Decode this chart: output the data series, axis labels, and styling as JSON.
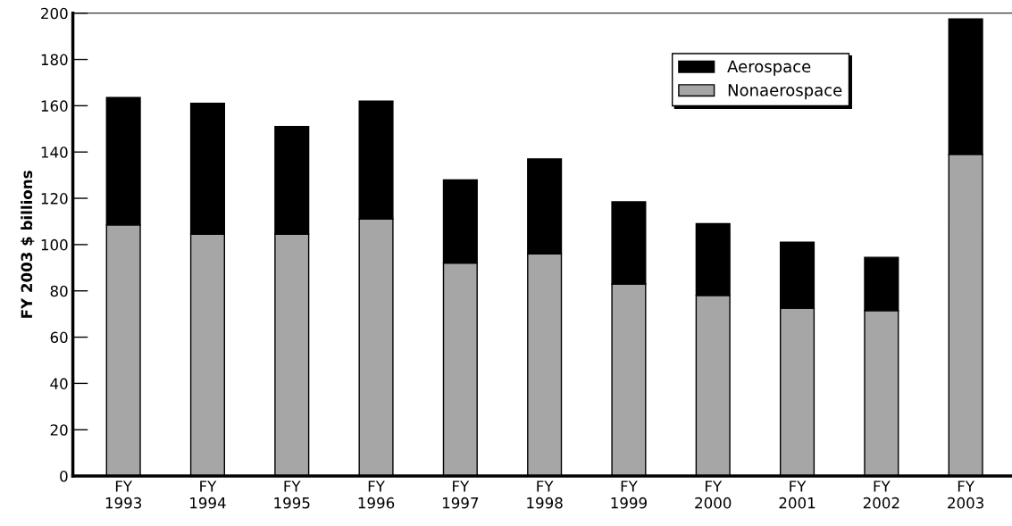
{
  "chart_data": {
    "type": "bar",
    "stacked": true,
    "ylabel": "FY 2003 $ billions",
    "categories": [
      "FY\n1993",
      "FY\n1994",
      "FY\n1995",
      "FY\n1996",
      "FY\n1997",
      "FY\n1998",
      "FY\n1999",
      "FY\n2000",
      "FY\n2001",
      "FY\n2002",
      "FY\n2003"
    ],
    "series": [
      {
        "name": "Nonaerospace",
        "color": "#a6a6a6",
        "values": [
          108.5,
          104.5,
          104.5,
          111,
          92,
          96,
          83,
          78,
          72.5,
          71.5,
          139
        ]
      },
      {
        "name": "Aerospace",
        "color": "#000000",
        "values": [
          55,
          56.5,
          46.5,
          51,
          36,
          41,
          35.5,
          31,
          28.5,
          23,
          58.5
        ]
      }
    ],
    "ylim": [
      0,
      200
    ],
    "yticks": [
      0,
      20,
      40,
      60,
      80,
      100,
      120,
      140,
      160,
      180,
      200
    ],
    "grid": false,
    "legend": "top right"
  }
}
